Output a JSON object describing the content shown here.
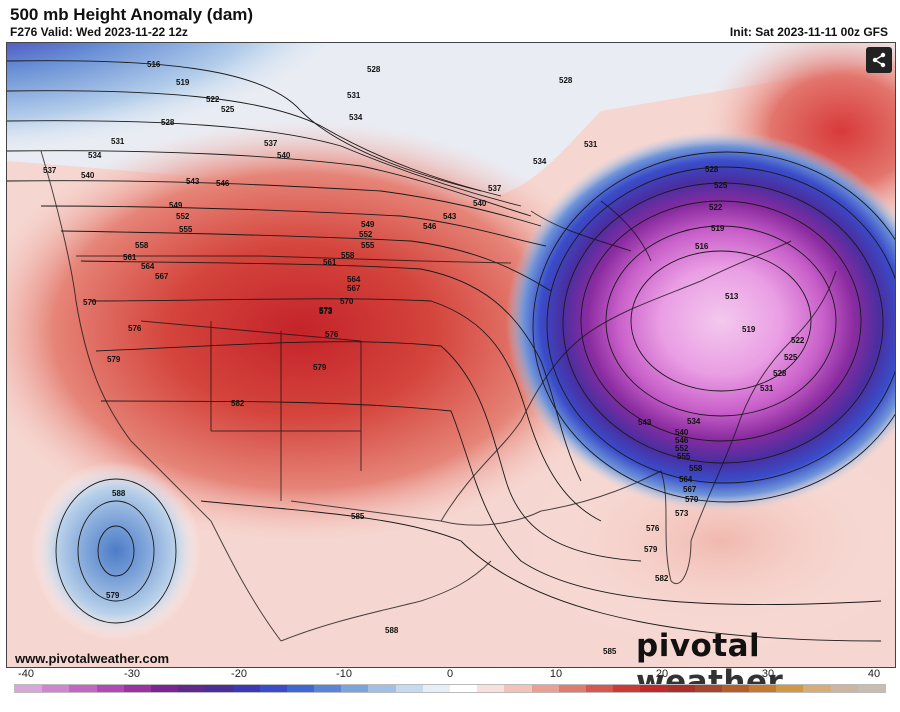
{
  "header": {
    "title": "500 mb Height Anomaly (dam)",
    "subtitle": "F276 Valid: Wed 2023-11-22 12z",
    "init": "Init: Sat 2023-11-11 00z GFS"
  },
  "footer": {
    "website": "www.pivotalweather.com",
    "brand_part1": "pivotal",
    "brand_part2": " weather"
  },
  "icons": {
    "share": "share-icon"
  },
  "colorbar": {
    "tick_labels": [
      "-40",
      "-30",
      "-20",
      "-10",
      "0",
      "10",
      "20",
      "30",
      "40"
    ],
    "colors": [
      "#d8a6d8",
      "#cf86cf",
      "#c266c4",
      "#b048b5",
      "#98339f",
      "#7a2692",
      "#5e2a8c",
      "#4a2f9a",
      "#3f38b4",
      "#3a4cc9",
      "#3e67d2",
      "#5a85d6",
      "#7ba3dc",
      "#a0c0e4",
      "#c5daee",
      "#e6eff7",
      "#ffffff",
      "#f8e0dc",
      "#f2c2bb",
      "#ea9f95",
      "#e07b70",
      "#d6574d",
      "#cc3a34",
      "#bf2a2a",
      "#a8302b",
      "#a64530",
      "#b55e2c",
      "#c47a30",
      "#cf9845",
      "#d6ad78",
      "#cdb6a0",
      "#c9bdb2"
    ],
    "hex_negative": "#3a4cc9",
    "hex_positive": "#cc3a34"
  },
  "contour_labels": [
    "516",
    "519",
    "522",
    "525",
    "528",
    "531",
    "534",
    "537",
    "540",
    "543",
    "546",
    "549",
    "552",
    "555",
    "558",
    "561",
    "564",
    "567",
    "570",
    "573",
    "576",
    "579",
    "582",
    "585",
    "588",
    "528",
    "531",
    "534",
    "537",
    "540",
    "543",
    "546",
    "549",
    "552",
    "555",
    "558",
    "561",
    "564",
    "567",
    "570",
    "573",
    "576",
    "579",
    "528",
    "531",
    "534",
    "537",
    "540",
    "528",
    "525",
    "522",
    "519",
    "516",
    "513",
    "519",
    "522",
    "525",
    "528",
    "531",
    "534",
    "540",
    "543",
    "546",
    "552",
    "555",
    "558",
    "564",
    "567",
    "570",
    "573",
    "576",
    "579",
    "582",
    "585",
    "588",
    "579",
    "576"
  ]
}
